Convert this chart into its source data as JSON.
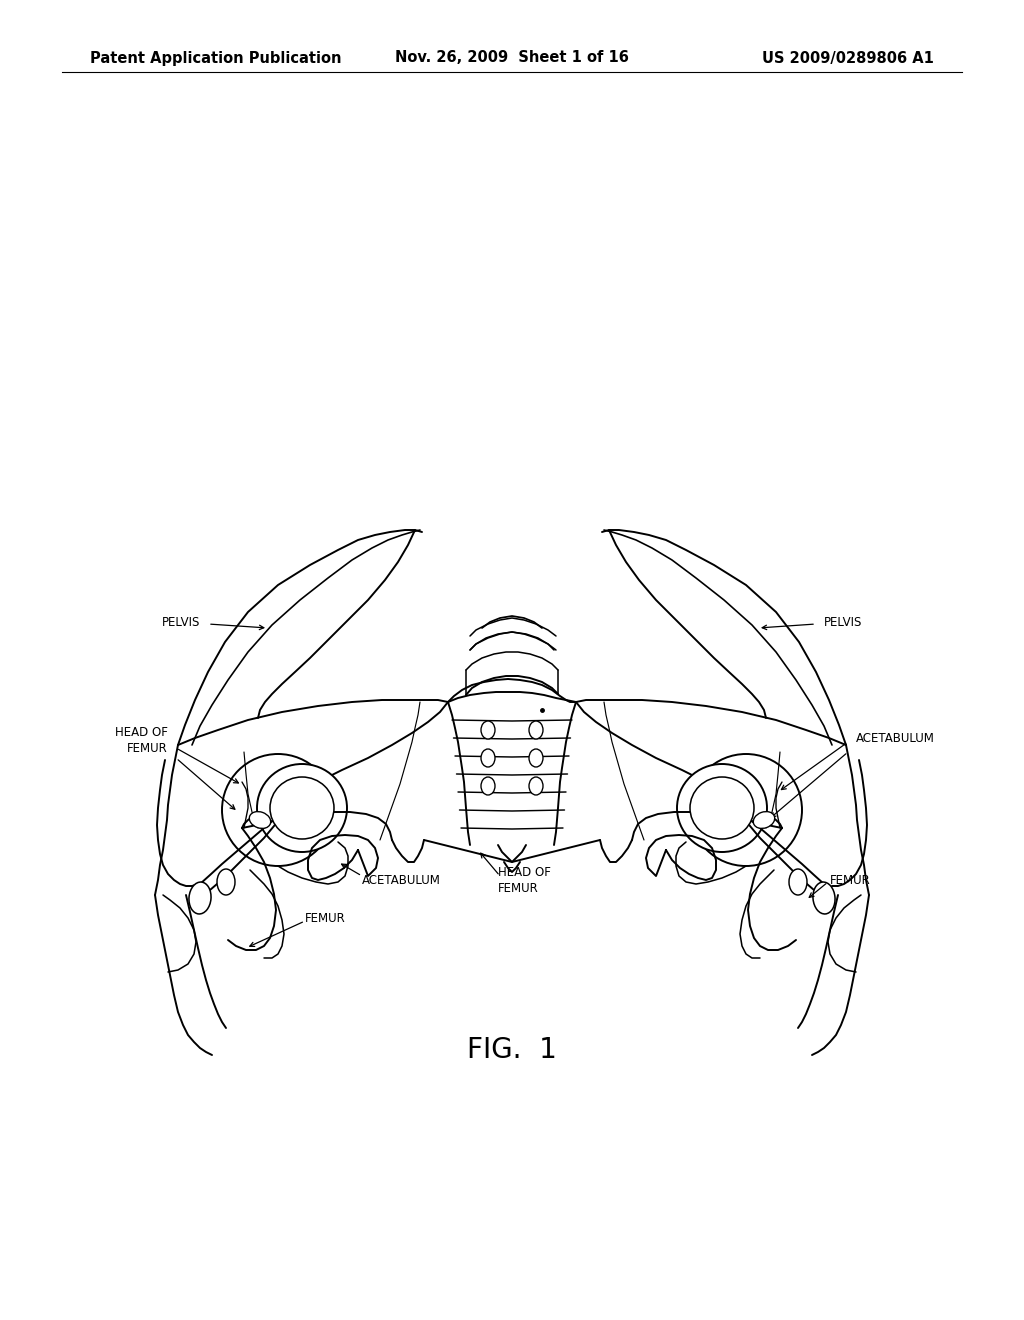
{
  "background_color": "#ffffff",
  "header_left": "Patent Application Publication",
  "header_center": "Nov. 26, 2009  Sheet 1 of 16",
  "header_right": "US 2009/0289806 A1",
  "header_fontsize": 10.5,
  "fig_label": "FIG.  1",
  "fig_label_fontsize": 20,
  "label_fontsize": 8.5,
  "line_width": 1.4
}
